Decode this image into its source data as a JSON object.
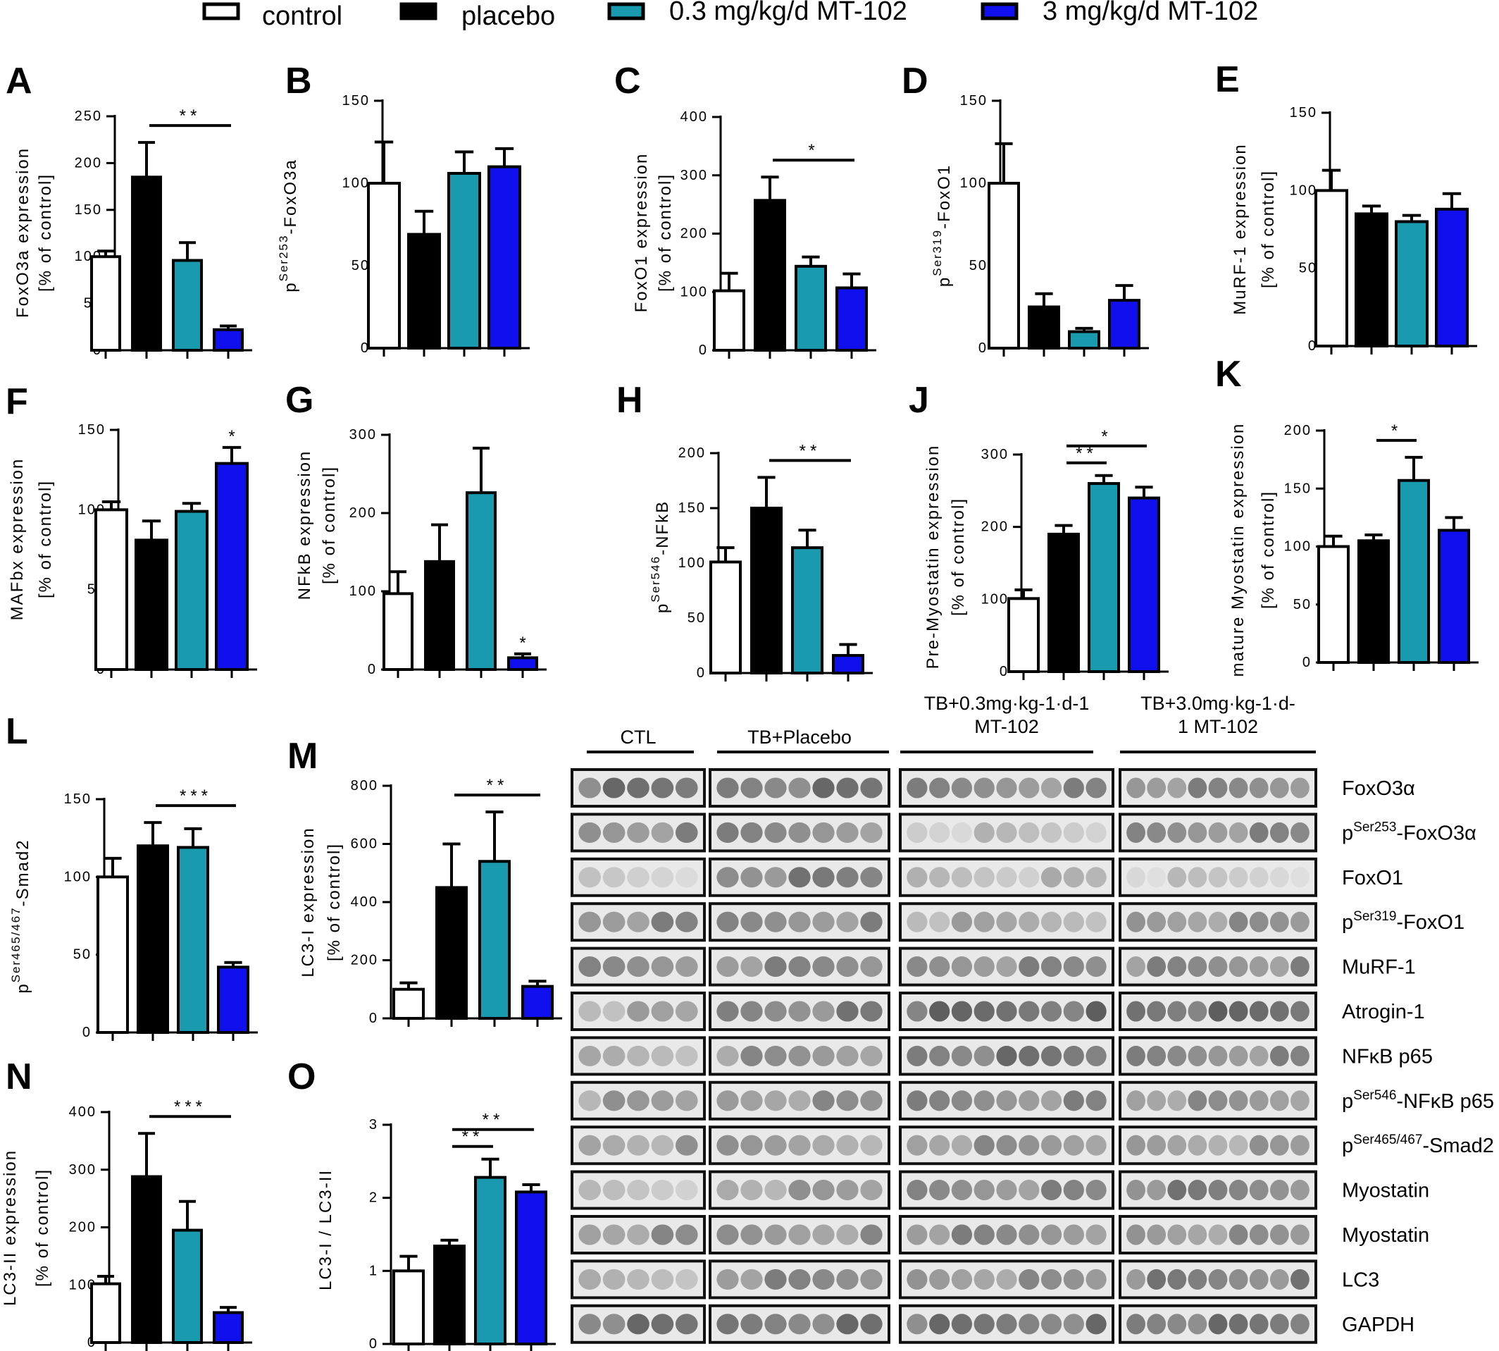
{
  "legend": [
    {
      "label": "control",
      "fill": "#ffffff"
    },
    {
      "label": "placebo",
      "fill": "#000000"
    },
    {
      "label": "0.3 mg/kg/d MT-102",
      "fill": "#1a9aaf"
    },
    {
      "label": "3 mg/kg/d MT-102",
      "fill": "#1010ee"
    }
  ],
  "colors": {
    "control": "#ffffff",
    "placebo": "#000000",
    "low_dose": "#1a9aaf",
    "high_dose": "#1010ee",
    "outline": "#000000"
  },
  "chart_data": [
    {
      "panel": "A",
      "type": "bar",
      "ylabel": "FoxO3a expression",
      "ylabel2": "[% of control]",
      "ylim": [
        0,
        250
      ],
      "yticks": [
        0,
        50,
        100,
        150,
        200,
        250
      ],
      "values": [
        100,
        185,
        96,
        22
      ],
      "errors": [
        6,
        37,
        19,
        4
      ],
      "sig": [
        {
          "from": 1,
          "to": 3,
          "label": "**"
        }
      ]
    },
    {
      "panel": "B",
      "type": "bar",
      "ylabel": "p",
      "ylabel_sup": "Ser253",
      "ylabel_tail": "-FoxO3a",
      "ylim": [
        0,
        150
      ],
      "yticks": [
        0,
        50,
        100,
        150
      ],
      "values": [
        100,
        69,
        106,
        110
      ],
      "errors": [
        25,
        14,
        13,
        11
      ],
      "sig": []
    },
    {
      "panel": "C",
      "type": "bar",
      "ylabel": "FoxO1 expression",
      "ylabel2": "[% of control]",
      "ylim": [
        0,
        400
      ],
      "yticks": [
        0,
        100,
        200,
        300,
        400
      ],
      "values": [
        102,
        257,
        144,
        107
      ],
      "errors": [
        30,
        40,
        16,
        24
      ],
      "sig": [
        {
          "from": 1,
          "to": 3,
          "label": "*"
        }
      ]
    },
    {
      "panel": "D",
      "type": "bar",
      "ylabel": "p",
      "ylabel_sup": "Ser319",
      "ylabel_tail": "-FoxO1",
      "ylim": [
        0,
        150
      ],
      "yticks": [
        0,
        50,
        100,
        150
      ],
      "values": [
        100,
        25,
        10,
        29
      ],
      "errors": [
        24,
        8,
        2,
        9
      ],
      "sig": []
    },
    {
      "panel": "E",
      "type": "bar",
      "ylabel": "MuRF-1 expression",
      "ylabel2": "[% of control]",
      "ylim": [
        0,
        150
      ],
      "yticks": [
        0,
        50,
        100,
        150
      ],
      "values": [
        100,
        85,
        80,
        88
      ],
      "errors": [
        13,
        5,
        4,
        10
      ],
      "sig": []
    },
    {
      "panel": "F",
      "type": "bar",
      "ylabel": "MAFbx expression",
      "ylabel2": "[% of control]",
      "ylim": [
        0,
        150
      ],
      "yticks": [
        0,
        50,
        100,
        150
      ],
      "values": [
        100,
        81,
        99,
        129
      ],
      "errors": [
        5,
        12,
        5,
        10
      ],
      "sig": [
        {
          "from": 3,
          "to": 3,
          "label": "*"
        }
      ]
    },
    {
      "panel": "G",
      "type": "bar",
      "ylabel": "NFkB expression",
      "ylabel2": "[% of control]",
      "ylim": [
        0,
        300
      ],
      "yticks": [
        0,
        100,
        200,
        300
      ],
      "values": [
        97,
        138,
        226,
        15
      ],
      "errors": [
        28,
        47,
        57,
        5
      ],
      "sig": [
        {
          "from": 3,
          "to": 3,
          "label": "*"
        }
      ]
    },
    {
      "panel": "H",
      "type": "bar",
      "ylabel": "p",
      "ylabel_sup": "Ser546",
      "ylabel_tail": "-NFkB",
      "ylim": [
        0,
        200
      ],
      "yticks": [
        0,
        50,
        100,
        150,
        200
      ],
      "values": [
        101,
        150,
        114,
        16
      ],
      "errors": [
        13,
        28,
        16,
        10
      ],
      "sig": [
        {
          "from": 1,
          "to": 3,
          "label": "**"
        }
      ]
    },
    {
      "panel": "J",
      "type": "bar",
      "ylabel": "Pre-Myostatin expression",
      "ylabel2": "[% of control]",
      "ylim": [
        0,
        300
      ],
      "yticks": [
        0,
        100,
        200,
        300
      ],
      "values": [
        101,
        190,
        260,
        240
      ],
      "errors": [
        12,
        12,
        11,
        15
      ],
      "sig": [
        {
          "from": 1,
          "to": 2,
          "label": "**"
        },
        {
          "from": 1,
          "to": 3,
          "label": "*"
        }
      ]
    },
    {
      "panel": "K",
      "type": "bar",
      "ylabel": "mature Myostatin expression",
      "ylabel2": "[% of control]",
      "ylim": [
        0,
        200
      ],
      "yticks": [
        0,
        50,
        100,
        150,
        200
      ],
      "values": [
        100,
        105,
        157,
        114
      ],
      "errors": [
        9,
        5,
        20,
        11
      ],
      "sig": [
        {
          "from": 1,
          "to": 2,
          "label": "*"
        }
      ]
    },
    {
      "panel": "L",
      "type": "bar",
      "ylabel": "p",
      "ylabel_sup": "Ser465/467",
      "ylabel_tail": "-Smad2",
      "ylim": [
        0,
        150
      ],
      "yticks": [
        0,
        50,
        100,
        150
      ],
      "values": [
        100,
        120,
        119,
        42
      ],
      "errors": [
        12,
        15,
        12,
        3
      ],
      "sig": [
        {
          "from": 1,
          "to": 3,
          "label": "***"
        }
      ]
    },
    {
      "panel": "M",
      "type": "bar",
      "ylabel": "LC3-I expression",
      "ylabel2": "[% of control]",
      "ylim": [
        0,
        800
      ],
      "yticks": [
        0,
        200,
        400,
        600,
        800
      ],
      "values": [
        100,
        450,
        540,
        110
      ],
      "errors": [
        22,
        150,
        170,
        18
      ],
      "sig": [
        {
          "from": 1,
          "to": 3,
          "label": "**"
        }
      ]
    },
    {
      "panel": "N",
      "type": "bar",
      "ylabel": "LC3-II expression",
      "ylabel2": "[% of control]",
      "ylim": [
        0,
        400
      ],
      "yticks": [
        0,
        100,
        200,
        300,
        400
      ],
      "values": [
        102,
        288,
        195,
        52
      ],
      "errors": [
        13,
        75,
        50,
        9
      ],
      "sig": [
        {
          "from": 1,
          "to": 3,
          "label": "***"
        }
      ]
    },
    {
      "panel": "O",
      "type": "bar",
      "ylabel": "LC3-I / LC3-II",
      "ylim": [
        0,
        3
      ],
      "yticks": [
        0,
        1,
        2,
        3
      ],
      "values": [
        1.0,
        1.34,
        2.28,
        2.08
      ],
      "errors": [
        0.2,
        0.08,
        0.25,
        0.1
      ],
      "sig": [
        {
          "from": 1,
          "to": 2,
          "label": "**"
        },
        {
          "from": 1,
          "to": 3,
          "label": "**"
        }
      ]
    }
  ],
  "blot": {
    "groups": [
      {
        "label": "CTL",
        "label2": ""
      },
      {
        "label": "TB+Placebo",
        "label2": ""
      },
      {
        "label": "TB+0.3mg·kg-1·d-1",
        "label2": "MT-102"
      },
      {
        "label": "TB+3.0mg·kg-1·d-",
        "label2": "1 MT-102"
      }
    ],
    "group_lanes": [
      5,
      7,
      9,
      9
    ],
    "rows": [
      {
        "label": "FoxO3α",
        "intensity": [
          0.55,
          0.55,
          0.45,
          0.45
        ]
      },
      {
        "label": "pSer253-FoxO3α",
        "pre": "p",
        "sup": "Ser253",
        "post": "-FoxO3α",
        "intensity": [
          0.45,
          0.45,
          0.18,
          0.45
        ]
      },
      {
        "label": "FoxO1",
        "intensity": [
          0.1,
          0.5,
          0.22,
          0.15
        ]
      },
      {
        "label": "pSer319-FoxO1",
        "pre": "p",
        "sup": "Ser319",
        "post": "-FoxO1",
        "intensity": [
          0.45,
          0.45,
          0.3,
          0.4
        ]
      },
      {
        "label": "MuRF-1",
        "intensity": [
          0.45,
          0.45,
          0.45,
          0.45
        ]
      },
      {
        "label": "Atrogin-1",
        "intensity": [
          0.3,
          0.5,
          0.6,
          0.6
        ]
      },
      {
        "label": "NFκB p65",
        "intensity": [
          0.3,
          0.4,
          0.55,
          0.45
        ]
      },
      {
        "label": "pSer546-NFκB p65",
        "pre": "p",
        "sup": "Ser546",
        "post": "-NFκB p65",
        "intensity": [
          0.35,
          0.4,
          0.45,
          0.4
        ]
      },
      {
        "label": "pSer465/467-Smad2",
        "pre": "p",
        "sup": "Ser465/467",
        "post": "-Smad2",
        "intensity": [
          0.35,
          0.35,
          0.4,
          0.35
        ]
      },
      {
        "label": "Myostatin",
        "intensity": [
          0.15,
          0.35,
          0.45,
          0.5
        ]
      },
      {
        "label": "Myostatin",
        "intensity": [
          0.4,
          0.4,
          0.45,
          0.4
        ]
      },
      {
        "label": "LC3",
        "intensity": [
          0.25,
          0.45,
          0.4,
          0.5
        ]
      },
      {
        "label": "GAPDH",
        "intensity": [
          0.55,
          0.55,
          0.55,
          0.55
        ]
      }
    ]
  }
}
